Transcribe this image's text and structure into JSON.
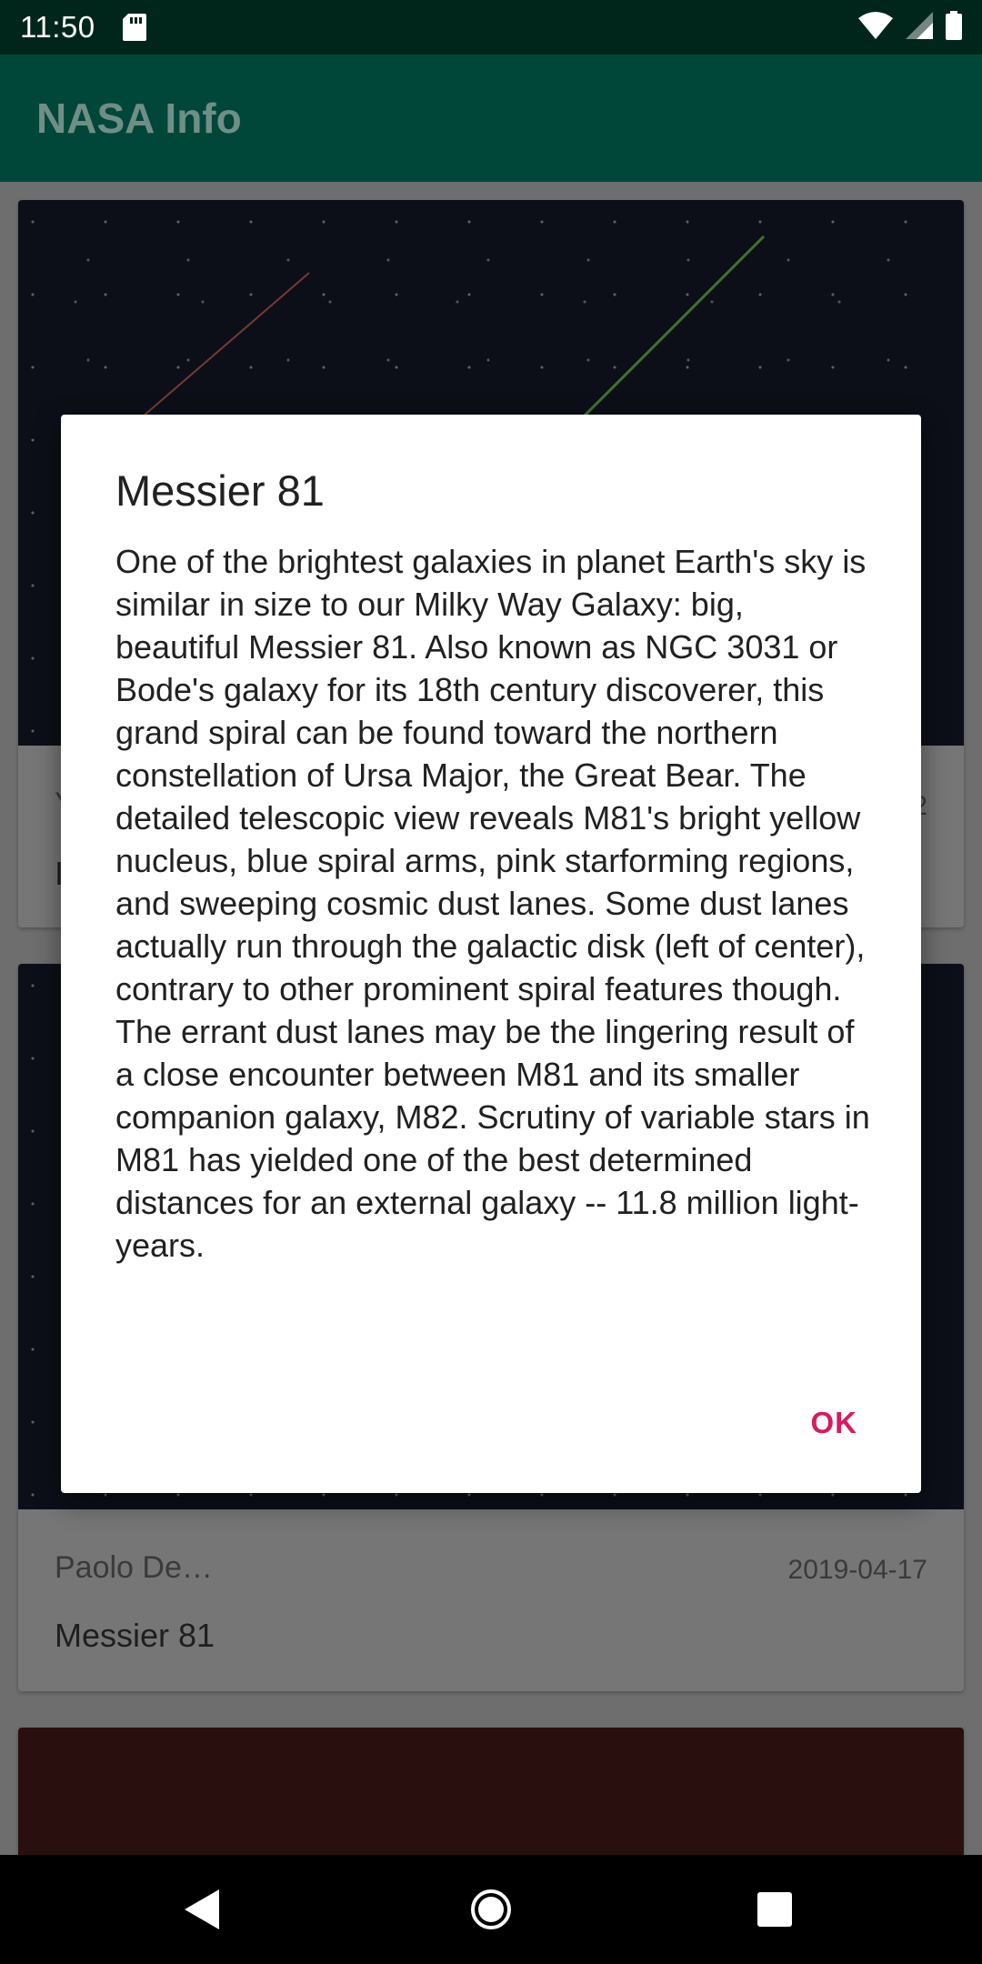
{
  "status_bar": {
    "time": "11:50",
    "icons": [
      "sd-card-icon",
      "wifi-icon",
      "signal-icon",
      "battery-icon"
    ]
  },
  "app_bar": {
    "title": "NASA Info"
  },
  "cards": [
    {
      "author": "Y",
      "date": "2",
      "title": "I"
    },
    {
      "author": "Paolo De…",
      "date": "2019-04-17",
      "title": "Messier 81"
    }
  ],
  "dialog": {
    "title": "Messier 81",
    "message": "One of the brightest galaxies in planet Earth's sky is similar in size to our Milky Way Galaxy: big, beautiful Messier 81. Also known as NGC 3031 or Bode's galaxy for its 18th century discoverer, this grand spiral can be found toward the northern constellation of Ursa Major, the Great Bear. The detailed telescopic view reveals M81's bright yellow nucleus, blue spiral arms, pink starforming regions, and sweeping cosmic dust lanes. Some dust lanes actually run through the galactic disk (left of center), contrary to other prominent spiral features though. The errant dust lanes may be the lingering result of a close encounter between M81 and its smaller companion galaxy, M82. Scrutiny of variable stars in M81 has yielded one of the best determined distances for an external galaxy -- 11.8 million light-years.",
    "ok_label": "OK"
  },
  "nav_bar": {
    "icons": [
      "back-icon",
      "home-icon",
      "recents-icon"
    ]
  },
  "colors": {
    "status_bar": "#00251a",
    "app_bar": "#00473a",
    "accent": "#d81b60"
  }
}
